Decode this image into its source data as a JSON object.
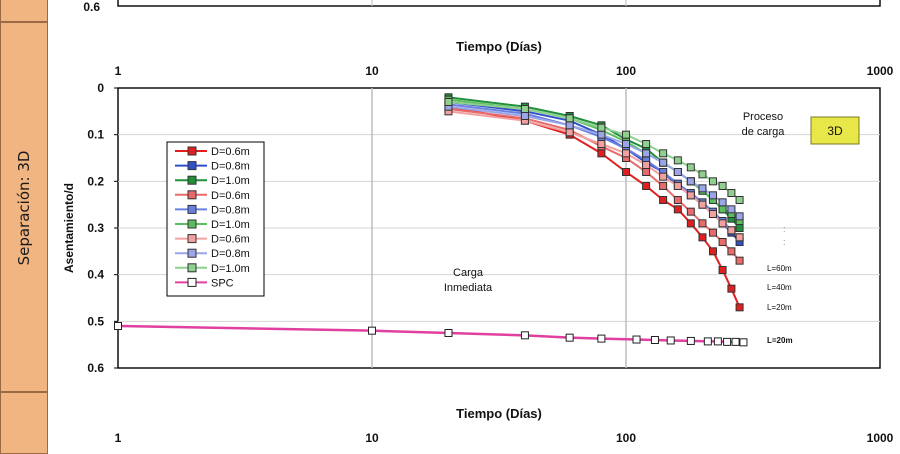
{
  "sidebar": {
    "label": "Separación: 3D",
    "colors": {
      "fill": "#f1b582",
      "border": "#9a6a45"
    }
  },
  "chart_data": [
    {
      "type": "line",
      "partial": true,
      "xlabel": "Tiempo (Días)",
      "xscale": "log",
      "xlim": [
        1,
        1000
      ],
      "x_ticks": [
        "1",
        "10",
        "100",
        "1000"
      ],
      "y_ticks": [
        "0.6"
      ],
      "series": []
    },
    {
      "type": "line",
      "xlabel": "Tiempo (Días)",
      "ylabel": "Asentamiento/d",
      "xscale": "log",
      "xlim": [
        1,
        1000
      ],
      "ylim": [
        0,
        0.6
      ],
      "y_inverted": true,
      "grid": true,
      "legend_position": "left",
      "x_ticks": [
        "1",
        "10",
        "100",
        "1000"
      ],
      "y_ticks": [
        "0",
        "0.1",
        "0.2",
        "0.3",
        "0.4",
        "0.5",
        "0.6"
      ],
      "x": [
        20,
        40,
        60,
        80,
        100,
        120,
        140,
        160,
        180,
        200,
        220,
        240,
        260,
        280
      ],
      "series": [
        {
          "name": "D=0.6m",
          "color": "#e02020",
          "values": [
            0.04,
            0.07,
            0.1,
            0.14,
            0.18,
            0.21,
            0.24,
            0.26,
            0.29,
            0.32,
            0.35,
            0.39,
            0.43,
            0.47
          ]
        },
        {
          "name": "D=0.8m",
          "color": "#3050c8",
          "values": [
            0.03,
            0.05,
            0.07,
            0.1,
            0.13,
            0.16,
            0.18,
            0.21,
            0.23,
            0.25,
            0.27,
            0.29,
            0.31,
            0.33
          ]
        },
        {
          "name": "D=1.0m",
          "color": "#20903a",
          "values": [
            0.02,
            0.04,
            0.06,
            0.08,
            0.11,
            0.13,
            0.16,
            0.18,
            0.2,
            0.22,
            0.24,
            0.26,
            0.28,
            0.3
          ]
        },
        {
          "name": "D=0.6m",
          "color": "#e86a6a",
          "values": [
            0.045,
            0.065,
            0.09,
            0.125,
            0.15,
            0.18,
            0.21,
            0.24,
            0.265,
            0.29,
            0.31,
            0.33,
            0.35,
            0.37
          ]
        },
        {
          "name": "D=0.8m",
          "color": "#6a80e0",
          "values": [
            0.035,
            0.055,
            0.08,
            0.105,
            0.13,
            0.155,
            0.18,
            0.205,
            0.225,
            0.245,
            0.265,
            0.285,
            0.305,
            0.32
          ]
        },
        {
          "name": "D=1.0m",
          "color": "#5bbf60",
          "values": [
            0.025,
            0.045,
            0.065,
            0.09,
            0.115,
            0.14,
            0.16,
            0.18,
            0.2,
            0.22,
            0.24,
            0.26,
            0.27,
            0.285
          ]
        },
        {
          "name": "D=0.6m",
          "color": "#f2a0a0",
          "values": [
            0.05,
            0.07,
            0.095,
            0.12,
            0.14,
            0.165,
            0.19,
            0.21,
            0.23,
            0.25,
            0.27,
            0.29,
            0.305,
            0.32
          ]
        },
        {
          "name": "D=0.8m",
          "color": "#9aa6e8",
          "values": [
            0.04,
            0.06,
            0.08,
            0.1,
            0.12,
            0.14,
            0.16,
            0.18,
            0.2,
            0.215,
            0.23,
            0.245,
            0.26,
            0.275
          ]
        },
        {
          "name": "D=1.0m",
          "color": "#8fd08f",
          "values": [
            0.03,
            0.045,
            0.065,
            0.085,
            0.1,
            0.12,
            0.14,
            0.155,
            0.17,
            0.185,
            0.2,
            0.21,
            0.225,
            0.24
          ]
        },
        {
          "name": "SPC",
          "color": "#e040a0",
          "marker_fill": "#ffffff",
          "marker_stroke": "#222222",
          "x": [
            1,
            10,
            20,
            40,
            60,
            80,
            110,
            130,
            150,
            180,
            210,
            230,
            250,
            270,
            290
          ],
          "values": [
            0.51,
            0.52,
            0.525,
            0.53,
            0.535,
            0.537,
            0.539,
            0.54,
            0.541,
            0.542,
            0.543,
            0.543,
            0.544,
            0.544,
            0.545
          ]
        }
      ],
      "annotations": {
        "carga_inmediata": [
          "Carga",
          "Inmediata"
        ],
        "proceso_carga": [
          "Proceso",
          "de carga"
        ],
        "badge": {
          "text": "3D",
          "fill": "#e8e74a",
          "stroke": "#7a7a20"
        },
        "l_labels": [
          "L=60m",
          "L=40m",
          "L=20m",
          "L=20m"
        ],
        "dots": [
          ":",
          ":"
        ]
      }
    }
  ]
}
